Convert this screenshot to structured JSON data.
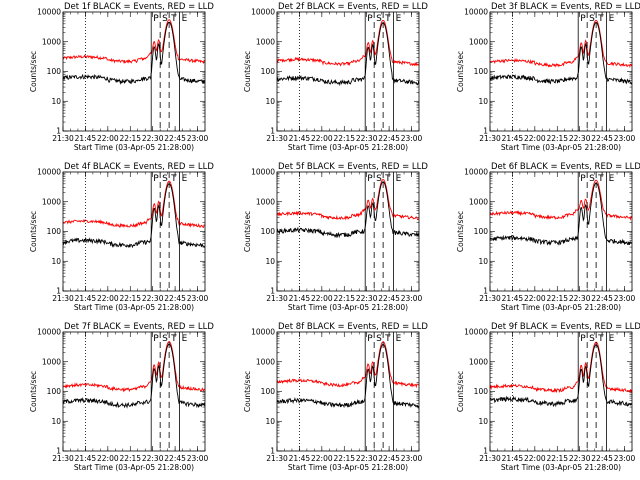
{
  "chart_data": {
    "type": "line",
    "panel_grid": "3x3",
    "xlabel": "Start Time (03-Apr-05 21:28:00)",
    "ylabel": "Counts/sec",
    "yscale": "log",
    "ylim": [
      1,
      10000
    ],
    "xlim": [
      "21:30",
      "23:05"
    ],
    "xticks": [
      "21:30",
      "21:45",
      "22:00",
      "22:15",
      "22:30",
      "22:45",
      "23:00"
    ],
    "yticks": [
      "1",
      "10",
      "100",
      "1000",
      "10000"
    ],
    "series_colors": {
      "events": "#000000",
      "lld": "#ff0000"
    },
    "markers": [
      {
        "time": "21:45",
        "style": "dotted",
        "label": ""
      },
      {
        "time": "22:29",
        "style": "solid",
        "label": "P"
      },
      {
        "time": "22:35",
        "style": "dashed",
        "label": "S"
      },
      {
        "time": "22:41",
        "style": "dashed",
        "label": "T"
      },
      {
        "time": "22:48",
        "style": "solid",
        "label": "E"
      }
    ],
    "panels": [
      {
        "title": "Det 1f BLACK = Events, RED = LLD",
        "events_base": 60,
        "lld_base": 280,
        "events_peak": 4500,
        "lld_peak": 5200
      },
      {
        "title": "Det 2f BLACK = Events, RED = LLD",
        "events_base": 55,
        "lld_base": 230,
        "events_peak": 4300,
        "lld_peak": 5000
      },
      {
        "title": "Det 3f BLACK = Events, RED = LLD",
        "events_base": 60,
        "lld_base": 210,
        "events_peak": 4400,
        "lld_peak": 5000
      },
      {
        "title": "Det 4f BLACK = Events, RED = LLD",
        "events_base": 45,
        "lld_base": 200,
        "events_peak": 4000,
        "lld_peak": 4700
      },
      {
        "title": "Det 5f BLACK = Events, RED = LLD",
        "events_base": 100,
        "lld_base": 370,
        "events_peak": 4600,
        "lld_peak": 5200
      },
      {
        "title": "Det 6f BLACK = Events, RED = LLD",
        "events_base": 55,
        "lld_base": 380,
        "events_peak": 4200,
        "lld_peak": 4900
      },
      {
        "title": "Det 7f BLACK = Events, RED = LLD",
        "events_base": 45,
        "lld_base": 150,
        "events_peak": 3900,
        "lld_peak": 4600
      },
      {
        "title": "Det 8f BLACK = Events, RED = LLD",
        "events_base": 45,
        "lld_base": 210,
        "events_peak": 3800,
        "lld_peak": 4500
      },
      {
        "title": "Det 9f BLACK = Events, RED = LLD",
        "events_base": 50,
        "lld_base": 140,
        "events_peak": 3700,
        "lld_peak": 4400
      }
    ]
  }
}
